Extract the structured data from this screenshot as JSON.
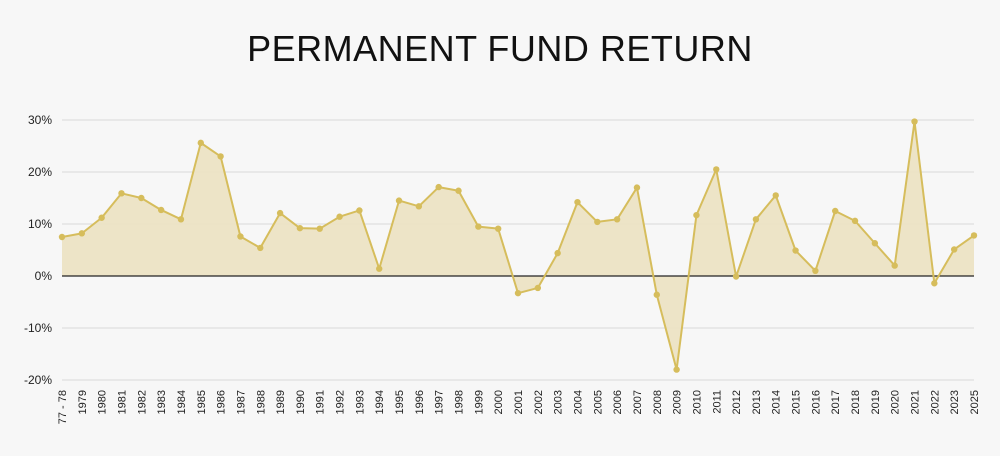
{
  "chart_data": {
    "type": "area",
    "title": "PERMANENT FUND RETURN",
    "xlabel": "",
    "ylabel": "",
    "y_unit": "%",
    "ylim": [
      -20,
      30
    ],
    "yticks": [
      30,
      20,
      10,
      0,
      -10,
      -20
    ],
    "ytick_labels": [
      "30%",
      "20%",
      "10%",
      "0%",
      "-10%",
      "-20%"
    ],
    "grid": true,
    "legend": "none",
    "colors": {
      "line": "#d6bd5c",
      "fill": "#ece3c4",
      "grid": "#d9d9d9",
      "zero_line": "#222222",
      "background": "#f7f7f7"
    },
    "categories": [
      "77 - 78",
      "1979",
      "1980",
      "1981",
      "1982",
      "1983",
      "1984",
      "1985",
      "1986",
      "1987",
      "1988",
      "1989",
      "1990",
      "1991",
      "1992",
      "1993",
      "1994",
      "1995",
      "1996",
      "1997",
      "1998",
      "1999",
      "2000",
      "2001",
      "2002",
      "2003",
      "2004",
      "2005",
      "2006",
      "2007",
      "2008",
      "2009",
      "2010",
      "2011",
      "2012",
      "2013",
      "2014",
      "2015",
      "2016",
      "2017",
      "2018",
      "2019",
      "2020",
      "2021",
      "2022",
      "2023",
      "2025"
    ],
    "values": [
      7.5,
      8.2,
      11.2,
      15.9,
      15.0,
      12.7,
      10.9,
      25.6,
      23.0,
      7.6,
      5.4,
      12.1,
      9.2,
      9.1,
      11.4,
      12.6,
      1.4,
      14.5,
      13.4,
      17.1,
      16.4,
      9.5,
      9.1,
      -3.3,
      -2.3,
      4.4,
      14.2,
      10.4,
      10.9,
      17.0,
      -3.6,
      -18.0,
      11.7,
      20.5,
      -0.1,
      10.9,
      15.5,
      4.9,
      1.0,
      12.5,
      10.6,
      6.3,
      2.0,
      29.7,
      -1.4,
      5.1,
      7.8
    ]
  }
}
